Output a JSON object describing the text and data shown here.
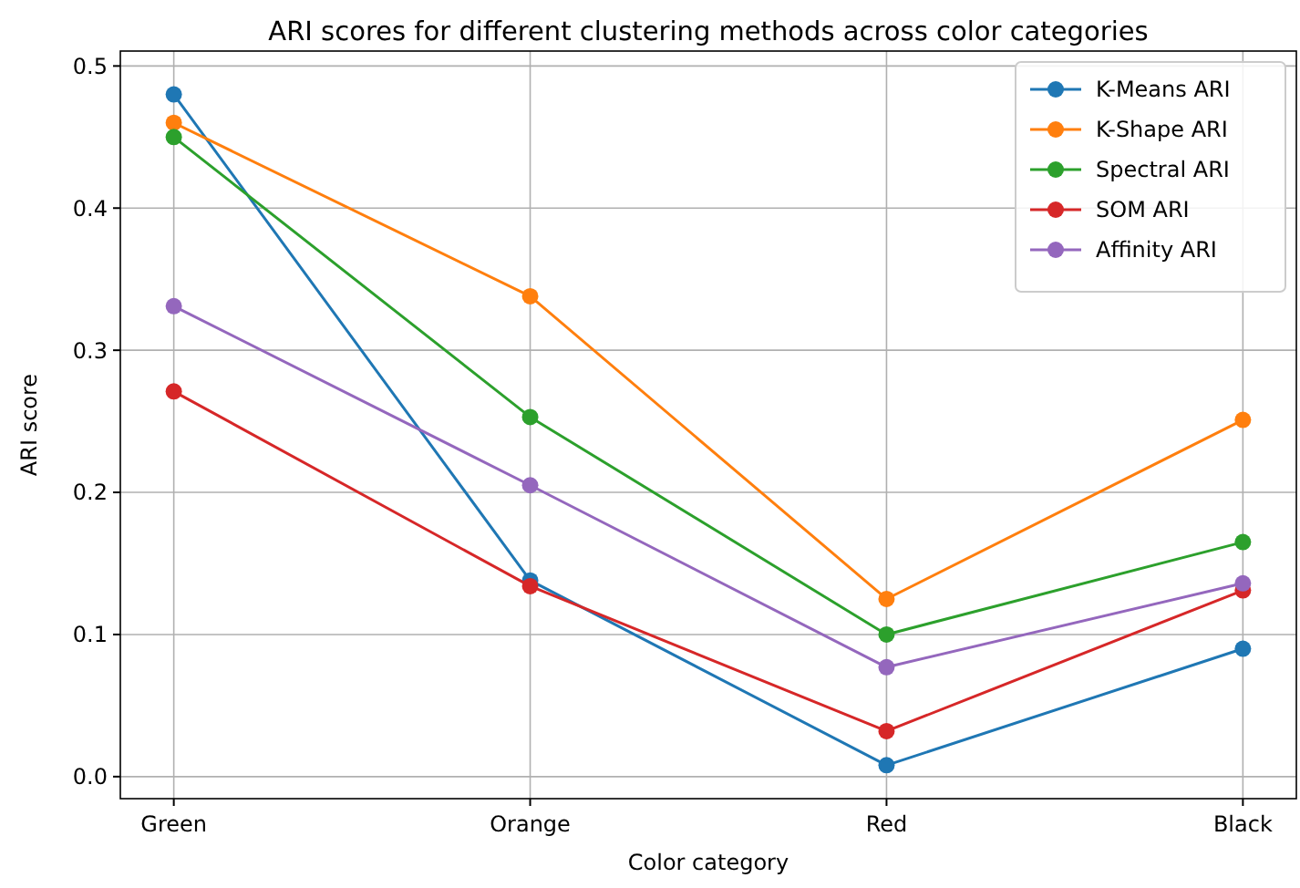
{
  "chart_data": {
    "type": "line",
    "title": "ARI scores for different clustering methods across color categories",
    "xlabel": "Color category",
    "ylabel": "ARI score",
    "categories": [
      "Green",
      "Orange",
      "Red",
      "Black"
    ],
    "series": [
      {
        "name": "K-Means ARI",
        "color": "#1f77b4",
        "values": [
          0.48,
          0.138,
          0.008,
          0.09
        ]
      },
      {
        "name": "K-Shape ARI",
        "color": "#ff7f0e",
        "values": [
          0.46,
          0.338,
          0.125,
          0.251
        ]
      },
      {
        "name": "Spectral ARI",
        "color": "#2ca02c",
        "values": [
          0.45,
          0.253,
          0.1,
          0.165
        ]
      },
      {
        "name": "SOM ARI",
        "color": "#d62728",
        "values": [
          0.271,
          0.134,
          0.032,
          0.131
        ]
      },
      {
        "name": "Affinity ARI",
        "color": "#9467bd",
        "values": [
          0.331,
          0.205,
          0.077,
          0.136
        ]
      }
    ],
    "ylim": [
      -0.0155,
      0.5105
    ],
    "yticks": [
      {
        "value": 0,
        "label": "0.0"
      },
      {
        "value": 0.1,
        "label": "0.1"
      },
      {
        "value": 0.2,
        "label": "0.2"
      },
      {
        "value": 0.3,
        "label": "0.3"
      },
      {
        "value": 0.4,
        "label": "0.4"
      },
      {
        "value": 0.5,
        "label": "0.5"
      }
    ],
    "grid": true,
    "legend": "top right",
    "marker": "circle",
    "line_style": "solid"
  }
}
